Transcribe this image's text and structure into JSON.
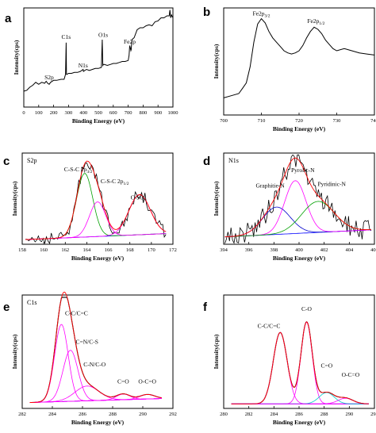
{
  "chart_data": [
    {
      "panel": "a",
      "type": "line",
      "xlabel": "Binding Energy (eV)",
      "ylabel": "Intensity(cps)",
      "xlim": [
        0,
        1000
      ],
      "xticks": [
        "0",
        "100",
        "200",
        "300",
        "400",
        "500",
        "600",
        "700",
        "800",
        "900",
        "1000"
      ],
      "series": [
        {
          "color": "#000000",
          "x": [
            0,
            20,
            40,
            60,
            80,
            100,
            120,
            140,
            150,
            160,
            170,
            180,
            200,
            220,
            250,
            270,
            280,
            284,
            286,
            290,
            300,
            320,
            340,
            360,
            380,
            398,
            400,
            420,
            440,
            460,
            480,
            500,
            520,
            526,
            530,
            534,
            540,
            560,
            580,
            600,
            620,
            640,
            660,
            680,
            700,
            706,
            710,
            714,
            718,
            720,
            725,
            740,
            760,
            780,
            800,
            820,
            840,
            860,
            880,
            900,
            920,
            940,
            960,
            975,
            980,
            985,
            990,
            1000
          ],
          "y": [
            0.16,
            0.17,
            0.2,
            0.22,
            0.25,
            0.23,
            0.25,
            0.24,
            0.26,
            0.24,
            0.23,
            0.25,
            0.27,
            0.27,
            0.28,
            0.28,
            0.33,
            0.65,
            0.33,
            0.33,
            0.34,
            0.34,
            0.35,
            0.35,
            0.36,
            0.38,
            0.36,
            0.38,
            0.37,
            0.38,
            0.39,
            0.39,
            0.4,
            0.68,
            0.42,
            0.43,
            0.43,
            0.42,
            0.43,
            0.44,
            0.44,
            0.45,
            0.46,
            0.46,
            0.47,
            0.52,
            0.62,
            0.6,
            0.57,
            0.58,
            0.68,
            0.7,
            0.78,
            0.8,
            0.8,
            0.82,
            0.83,
            0.82,
            0.86,
            0.87,
            0.9,
            0.9,
            0.92,
            0.92,
            0.98,
            0.9,
            0.93,
            0.9
          ]
        }
      ],
      "annotations": [
        {
          "text": "S2p",
          "x": 170,
          "y": 0.28
        },
        {
          "text": "N1s",
          "x": 398,
          "y": 0.4
        },
        {
          "text": "C1s",
          "x": 284,
          "y": 0.69
        },
        {
          "text": "O1s",
          "x": 532,
          "y": 0.71
        },
        {
          "text": "Fe2p",
          "x": 710,
          "y": 0.64
        }
      ]
    },
    {
      "panel": "b",
      "type": "line",
      "xlabel": "Binding Energy (eV)",
      "ylabel": "Intensity(cps)",
      "xlim": [
        700,
        740
      ],
      "xticks": [
        "700",
        "710",
        "720",
        "730",
        "740"
      ],
      "series": [
        {
          "color": "#000000",
          "x": [
            700,
            702,
            704,
            705,
            706,
            707,
            708,
            709,
            710,
            711,
            712,
            713,
            714,
            715,
            716,
            717,
            718,
            719,
            720,
            721,
            722,
            723,
            724,
            725,
            726,
            727,
            728,
            729,
            730,
            732,
            734,
            736,
            738,
            740
          ],
          "y": [
            0.16,
            0.18,
            0.2,
            0.25,
            0.3,
            0.45,
            0.68,
            0.85,
            0.9,
            0.86,
            0.78,
            0.72,
            0.68,
            0.64,
            0.6,
            0.58,
            0.57,
            0.58,
            0.6,
            0.65,
            0.72,
            0.78,
            0.82,
            0.8,
            0.76,
            0.7,
            0.66,
            0.62,
            0.6,
            0.62,
            0.6,
            0.58,
            0.57,
            0.56
          ]
        }
      ],
      "annotations": [
        {
          "text": "Fe2p3/2",
          "x": 710,
          "y": 0.93
        },
        {
          "text": "Fe2p1/2",
          "x": 724.5,
          "y": 0.86
        }
      ]
    },
    {
      "panel": "c",
      "type": "line",
      "title": "S2p",
      "xlabel": "Binding Energy (eV)",
      "ylabel": "Intensity(cps)",
      "xlim": [
        158,
        172
      ],
      "xticks": [
        "158",
        "160",
        "162",
        "164",
        "166",
        "168",
        "170",
        "172"
      ],
      "annotations": [
        {
          "text": "C-S-C 2p3/2",
          "x": 163.2,
          "y": 0.8
        },
        {
          "text": "C-S-C 2p1/2",
          "x": 166.6,
          "y": 0.67
        },
        {
          "text": "C-SO x",
          "x": 168.8,
          "y": 0.49
        }
      ]
    },
    {
      "panel": "d",
      "type": "line",
      "title": "N1s",
      "xlabel": "Binding Energy (eV)",
      "ylabel": "Intensity(cps)",
      "xlim": [
        394,
        406
      ],
      "xticks": [
        "394",
        "396",
        "398",
        "400",
        "402",
        "404",
        "406"
      ],
      "annotations": [
        {
          "text": "Graphitie-N",
          "x": 397.7,
          "y": 0.62
        },
        {
          "text": "Pyrolic-N",
          "x": 400.3,
          "y": 0.79
        },
        {
          "text": "Pyridinic-N",
          "x": 402.6,
          "y": 0.64
        }
      ]
    },
    {
      "panel": "e",
      "type": "line",
      "title": "C1s",
      "xlabel": "Binding Energy (eV)",
      "ylabel": "Intensity(cps)",
      "xlim": [
        282,
        292
      ],
      "xticks": [
        "282",
        "284",
        "286",
        "288",
        "290",
        "292"
      ],
      "annotations": [
        {
          "text": "C-C/C=C",
          "x": 285.6,
          "y": 0.82
        },
        {
          "text": "C=N/C-S",
          "x": 286.3,
          "y": 0.57
        },
        {
          "text": "C-N/C-O",
          "x": 286.8,
          "y": 0.37
        },
        {
          "text": "C=O",
          "x": 288.7,
          "y": 0.22
        },
        {
          "text": "O-C=O",
          "x": 290.3,
          "y": 0.22
        }
      ]
    },
    {
      "panel": "f",
      "type": "line",
      "xlabel": "Binding Energy (eV)",
      "ylabel": "Intensity(cps)",
      "xlim": [
        280,
        292
      ],
      "xticks": [
        "280",
        "282",
        "284",
        "286",
        "288",
        "290",
        "292"
      ],
      "annotations": [
        {
          "text": "C-C/C=C",
          "x": 283.6,
          "y": 0.71
        },
        {
          "text": "C-O",
          "x": 286.6,
          "y": 0.86
        },
        {
          "text": "C=O",
          "x": 288.2,
          "y": 0.36
        },
        {
          "text": "O-C=O",
          "x": 290.1,
          "y": 0.28
        }
      ]
    }
  ]
}
